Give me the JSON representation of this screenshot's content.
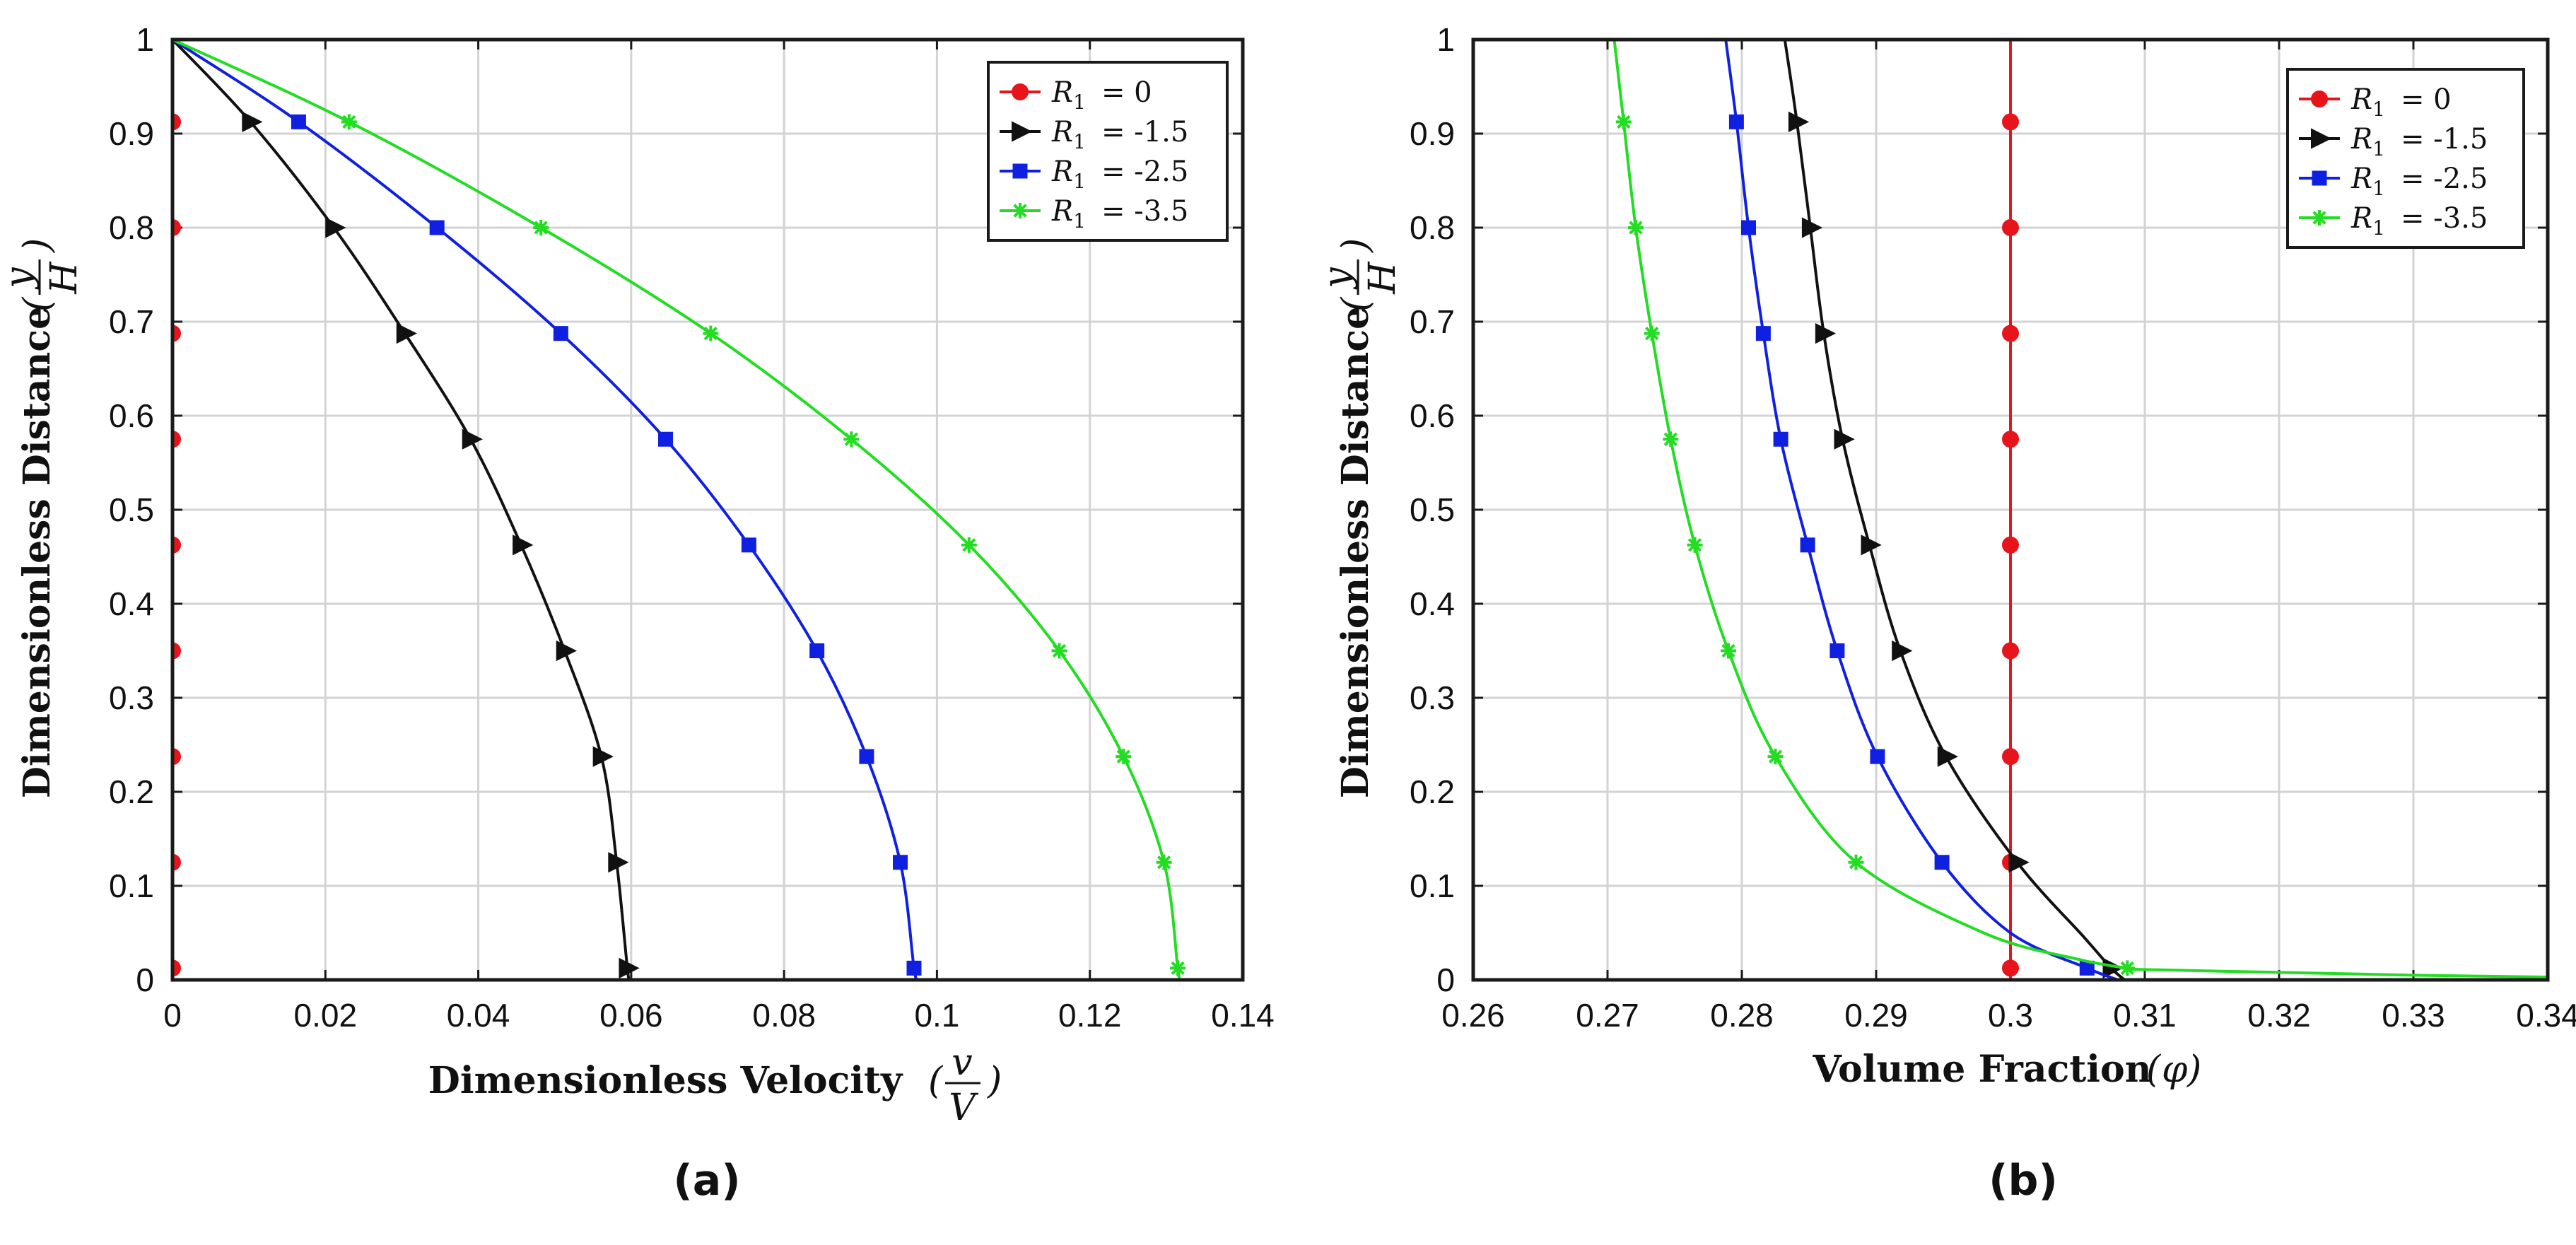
{
  "chart_data": [
    {
      "type": "line",
      "panel_label": "(a)",
      "xlabel": "Dimensionless Velocity",
      "xlabel_math": {
        "open": "(",
        "num": "v",
        "den": "V",
        "close": ")"
      },
      "ylabel": "Dimensionless Distance",
      "ylabel_math": {
        "open": "(",
        "num": "y",
        "den": "H",
        "close": ")"
      },
      "xlim": [
        0,
        0.14
      ],
      "ylim": [
        0,
        1
      ],
      "xticks": [
        0,
        0.02,
        0.04,
        0.06,
        0.08,
        0.1,
        0.12,
        0.14
      ],
      "xtick_labels": [
        "0",
        "0.02",
        "0.04",
        "0.06",
        "0.08",
        "0.1",
        "0.12",
        "0.14"
      ],
      "yticks": [
        0,
        0.1,
        0.2,
        0.3,
        0.4,
        0.5,
        0.6,
        0.7,
        0.8,
        0.9,
        1
      ],
      "ytick_labels": [
        "0",
        "0.1",
        "0.2",
        "0.3",
        "0.4",
        "0.5",
        "0.6",
        "0.7",
        "0.8",
        "0.9",
        "1"
      ],
      "grid": true,
      "legend_position": "top-right",
      "series": [
        {
          "name": "R1 = 0",
          "legend_symbol": "R",
          "legend_sub": "1",
          "legend_value": "= 0",
          "color": "#e8141c",
          "marker": "circle",
          "x": [
            0,
            0,
            0,
            0,
            0,
            0,
            0,
            0,
            0,
            0,
            0
          ],
          "y": [
            0,
            0.0125,
            0.125,
            0.2375,
            0.35,
            0.4625,
            0.575,
            0.6875,
            0.8,
            0.9125,
            1
          ],
          "marker_x": [
            0,
            0,
            0,
            0,
            0,
            0,
            0,
            0,
            0
          ],
          "marker_y": [
            0.0125,
            0.125,
            0.2375,
            0.35,
            0.4625,
            0.575,
            0.6875,
            0.8,
            0.9125
          ]
        },
        {
          "name": "R1 = -1.5",
          "legend_symbol": "R",
          "legend_sub": "1",
          "legend_value": "= -1.5",
          "color": "#111111",
          "marker": "triangle-right",
          "x": [
            0.0598,
            0.0595,
            0.0581,
            0.0561,
            0.0513,
            0.0456,
            0.039,
            0.0304,
            0.0211,
            0.0102,
            0
          ],
          "y": [
            0,
            0.0125,
            0.125,
            0.2375,
            0.35,
            0.4625,
            0.575,
            0.6875,
            0.8,
            0.9125,
            1
          ],
          "marker_x": [
            0.0595,
            0.0581,
            0.0561,
            0.0513,
            0.0456,
            0.039,
            0.0304,
            0.0211,
            0.0102
          ],
          "marker_y": [
            0.0125,
            0.125,
            0.2375,
            0.35,
            0.4625,
            0.575,
            0.6875,
            0.8,
            0.9125
          ]
        },
        {
          "name": "R1 = -2.5",
          "legend_symbol": "R",
          "legend_sub": "1",
          "legend_value": "= -2.5",
          "color": "#1020e0",
          "marker": "square",
          "x": [
            0.0975,
            0.097,
            0.0952,
            0.0908,
            0.0843,
            0.0754,
            0.0645,
            0.0508,
            0.0346,
            0.0165,
            0
          ],
          "y": [
            0,
            0.0125,
            0.125,
            0.2375,
            0.35,
            0.4625,
            0.575,
            0.6875,
            0.8,
            0.9125,
            1
          ],
          "marker_x": [
            0.097,
            0.0952,
            0.0908,
            0.0843,
            0.0754,
            0.0645,
            0.0508,
            0.0346,
            0.0165
          ],
          "marker_y": [
            0.0125,
            0.125,
            0.2375,
            0.35,
            0.4625,
            0.575,
            0.6875,
            0.8,
            0.9125
          ]
        },
        {
          "name": "R1 = -3.5",
          "legend_symbol": "R",
          "legend_sub": "1",
          "legend_value": "= -3.5",
          "color": "#22dd22",
          "marker": "star",
          "x": [
            0.1318,
            0.1315,
            0.1297,
            0.1244,
            0.116,
            0.1042,
            0.0888,
            0.0704,
            0.0482,
            0.0231,
            0
          ],
          "y": [
            0,
            0.0125,
            0.125,
            0.2375,
            0.35,
            0.4625,
            0.575,
            0.6875,
            0.8,
            0.9125,
            1
          ],
          "marker_x": [
            0.1315,
            0.1297,
            0.1244,
            0.116,
            0.1042,
            0.0888,
            0.0704,
            0.0482,
            0.0231
          ],
          "marker_y": [
            0.0125,
            0.125,
            0.2375,
            0.35,
            0.4625,
            0.575,
            0.6875,
            0.8,
            0.9125
          ]
        }
      ]
    },
    {
      "type": "line",
      "panel_label": "(b)",
      "xlabel": "Volume Fraction",
      "xlabel_math": {
        "open": "(",
        "sym": "φ",
        "close": ")"
      },
      "ylabel": "Dimensionless Distance",
      "ylabel_math": {
        "open": "(",
        "num": "y",
        "den": "H",
        "close": ")"
      },
      "xlim": [
        0.26,
        0.34
      ],
      "ylim": [
        0,
        1
      ],
      "xticks": [
        0.26,
        0.27,
        0.28,
        0.29,
        0.3,
        0.31,
        0.32,
        0.33,
        0.34
      ],
      "xtick_labels": [
        "0.26",
        "0.27",
        "0.28",
        "0.29",
        "0.3",
        "0.31",
        "0.32",
        "0.33",
        "0.34"
      ],
      "yticks": [
        0,
        0.1,
        0.2,
        0.3,
        0.4,
        0.5,
        0.6,
        0.7,
        0.8,
        0.9,
        1
      ],
      "ytick_labels": [
        "0",
        "0.1",
        "0.2",
        "0.3",
        "0.4",
        "0.5",
        "0.6",
        "0.7",
        "0.8",
        "0.9",
        "1"
      ],
      "grid": true,
      "legend_position": "top-right",
      "series": [
        {
          "name": "R1 = 0",
          "legend_symbol": "R",
          "legend_sub": "1",
          "legend_value": "= 0",
          "color": "#e8141c",
          "marker": "circle",
          "x": [
            0.3,
            0.3,
            0.3,
            0.3,
            0.3,
            0.3,
            0.3,
            0.3,
            0.3,
            0.3,
            0.3
          ],
          "y": [
            0,
            0.0125,
            0.125,
            0.2375,
            0.35,
            0.4625,
            0.575,
            0.6875,
            0.8,
            0.9125,
            1
          ],
          "marker_x": [
            0.3,
            0.3,
            0.3,
            0.3,
            0.3,
            0.3,
            0.3,
            0.3,
            0.3
          ],
          "marker_y": [
            0.0125,
            0.125,
            0.2375,
            0.35,
            0.4625,
            0.575,
            0.6875,
            0.8,
            0.9125
          ]
        },
        {
          "name": "R1 = -1.5",
          "legend_symbol": "R",
          "legend_sub": "1",
          "legend_value": "= -1.5",
          "color": "#111111",
          "marker": "triangle-right",
          "x": [
            0.3085,
            0.3075,
            0.3055,
            0.3005,
            0.2952,
            0.2918,
            0.2895,
            0.2875,
            0.2861,
            0.2851,
            0.2841,
            0.2832
          ],
          "y": [
            0.0,
            0.0125,
            0.045,
            0.125,
            0.2375,
            0.35,
            0.4625,
            0.575,
            0.6875,
            0.8,
            0.9125,
            1
          ],
          "marker_x": [
            0.3075,
            0.3005,
            0.2952,
            0.2918,
            0.2895,
            0.2875,
            0.2861,
            0.2851,
            0.2841
          ],
          "marker_y": [
            0.0125,
            0.125,
            0.2375,
            0.35,
            0.4625,
            0.575,
            0.6875,
            0.8,
            0.9125
          ]
        },
        {
          "name": "R1 = -2.5",
          "legend_symbol": "R",
          "legend_sub": "1",
          "legend_value": "= -2.5",
          "color": "#1020e0",
          "marker": "square",
          "x": [
            0.308,
            0.3057,
            0.3,
            0.2949,
            0.2901,
            0.2871,
            0.2849,
            0.2829,
            0.2816,
            0.2805,
            0.2796,
            0.2788
          ],
          "y": [
            0.0,
            0.0125,
            0.05,
            0.125,
            0.2375,
            0.35,
            0.4625,
            0.575,
            0.6875,
            0.8,
            0.9125,
            1
          ],
          "marker_x": [
            0.3057,
            0.2949,
            0.2901,
            0.2871,
            0.2849,
            0.2829,
            0.2816,
            0.2805,
            0.2796
          ],
          "marker_y": [
            0.0125,
            0.125,
            0.2375,
            0.35,
            0.4625,
            0.575,
            0.6875,
            0.8,
            0.9125
          ]
        },
        {
          "name": "R1 = -3.5",
          "legend_symbol": "R",
          "legend_sub": "1",
          "legend_value": "= -3.5",
          "color": "#22dd22",
          "marker": "star",
          "x": [
            0.34,
            0.33,
            0.32,
            0.31,
            0.3087,
            0.305,
            0.298,
            0.2885,
            0.2825,
            0.279,
            0.2765,
            0.2747,
            0.2733,
            0.2721,
            0.2712,
            0.2705
          ],
          "y": [
            0.003,
            0.005,
            0.008,
            0.011,
            0.0125,
            0.022,
            0.05,
            0.125,
            0.2375,
            0.35,
            0.4625,
            0.575,
            0.6875,
            0.8,
            0.9125,
            1
          ],
          "marker_x": [
            0.3087,
            0.2885,
            0.2825,
            0.279,
            0.2765,
            0.2747,
            0.2733,
            0.2721,
            0.2712
          ],
          "marker_y": [
            0.0125,
            0.125,
            0.2375,
            0.35,
            0.4625,
            0.575,
            0.6875,
            0.8,
            0.9125
          ]
        }
      ]
    }
  ]
}
